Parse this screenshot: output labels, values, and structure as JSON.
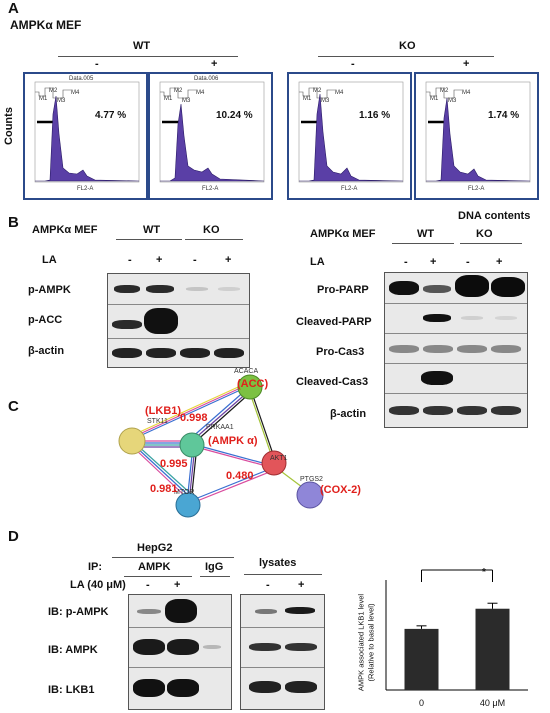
{
  "panel_a": {
    "letter": "A",
    "cell_label": "AMPKα MEF",
    "groups": [
      {
        "name": "WT"
      },
      {
        "name": "KO"
      }
    ],
    "treatments": [
      "-",
      "+",
      "-",
      "+"
    ],
    "y_label": "Counts",
    "x_label": "DNA contents",
    "histograms": [
      {
        "percent": "4.77 %",
        "title": "Data.005"
      },
      {
        "percent": "10.24 %",
        "title": "Data.006"
      },
      {
        "percent": "1.16 %",
        "title": ""
      },
      {
        "percent": "1.74 %",
        "title": ""
      }
    ],
    "axis_label": "FL2-A",
    "gate_labels": [
      "M1",
      "M2",
      "M3",
      "M4"
    ]
  },
  "panel_b": {
    "letter": "B",
    "left": {
      "cell_label": "AMPKα MEF",
      "groups": [
        "WT",
        "KO"
      ],
      "treatment_label": "LA",
      "treatments": [
        "-",
        "+",
        "-",
        "+"
      ],
      "rows": [
        "p-AMPK",
        "p-ACC",
        "β-actin"
      ]
    },
    "right": {
      "cell_label": "AMPKα MEF",
      "groups": [
        "WT",
        "KO"
      ],
      "treatment_label": "LA",
      "treatments": [
        "-",
        "+",
        "-",
        "+"
      ],
      "rows": [
        "Pro-PARP",
        "Cleaved-PARP",
        "Pro-Cas3",
        "Cleaved-Cas3",
        "β-actin"
      ]
    }
  },
  "panel_c": {
    "letter": "C",
    "nodes": [
      {
        "name": "ACACA",
        "label": "(ACC)",
        "color": "#7cc142"
      },
      {
        "name": "STK11",
        "label": "(LKB1)",
        "color": "#e6d67a"
      },
      {
        "name": "PRKAA1",
        "label": "(AMPK α)",
        "color": "#5fc79a"
      },
      {
        "name": "AKT1",
        "label": "",
        "color": "#e2555a"
      },
      {
        "name": "MTOR",
        "label": "",
        "color": "#4aa6d3"
      },
      {
        "name": "PTGS2",
        "label": "(COX-2)",
        "color": "#8f86d8"
      }
    ],
    "scores": [
      "0.998",
      "0.995",
      "0.480",
      "0.981"
    ]
  },
  "panel_d": {
    "letter": "D",
    "cell_line": "HepG2",
    "ip_label": "IP:",
    "ip_groups": [
      "AMPK",
      "IgG"
    ],
    "lysates_label": "lysates",
    "treatment_label": "LA (40 μM)",
    "treatments": [
      "-",
      "+",
      "-",
      "+"
    ],
    "rows": [
      "IB: p-AMPK",
      "IB:  AMPK",
      "IB: LKB1"
    ],
    "significance": "*",
    "bar_ylabel_line1": "AMPK associated LKB1 level",
    "bar_ylabel_line2": "(Relative to basal level)",
    "bar_color": "#2b2b2b"
  },
  "chart_data": {
    "type": "bar",
    "categories": [
      "0",
      "40 μM"
    ],
    "values": [
      1.0,
      1.33
    ],
    "errors": [
      0.05,
      0.09
    ],
    "ylabel": "AMPK associated LKB1 level (Relative to basal level)",
    "ylim": [
      0,
      1.8
    ],
    "yticks_shown": false
  }
}
